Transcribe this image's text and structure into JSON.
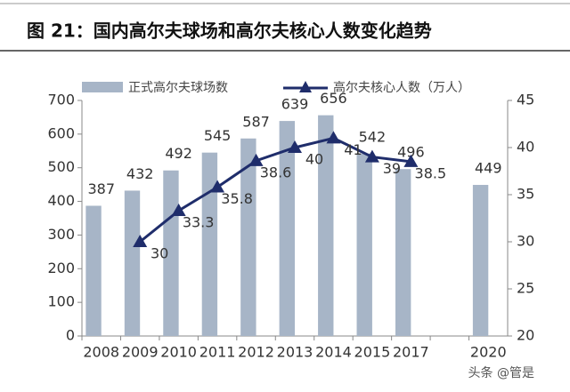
{
  "chart_data": {
    "type": "bar_line",
    "title": "图 21：国内高尔夫球场和高尔夫核心人数变化趋势",
    "categories": [
      "2008",
      "2009",
      "2010",
      "2011",
      "2012",
      "2013",
      "2014",
      "2015",
      "2017",
      null,
      "2020"
    ],
    "series": [
      {
        "name": "正式高尔夫球场数",
        "color": "#a7b5c7",
        "type": "bar",
        "axis": "y",
        "values": [
          387,
          432,
          492,
          545,
          587,
          639,
          656,
          542,
          496,
          null,
          449
        ]
      },
      {
        "name": "高尔夫核心人数（万人）",
        "color": "#1f2d6b",
        "type": "line",
        "axis": "y2",
        "values": [
          null,
          30,
          33.3,
          35.8,
          38.6,
          40,
          41,
          39,
          38.5,
          null,
          null
        ]
      }
    ],
    "ylim": [
      0,
      700
    ],
    "yticks": [
      0,
      100,
      200,
      300,
      400,
      500,
      600,
      700
    ],
    "y2lim": [
      20,
      45
    ],
    "y2ticks": [
      20,
      25,
      30,
      35,
      40,
      45
    ],
    "watermark": "头条 @管是"
  }
}
